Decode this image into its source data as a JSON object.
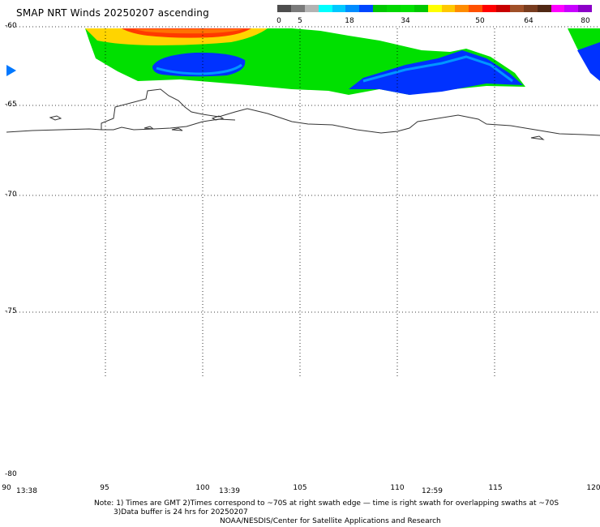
{
  "title": "SMAP NRT Winds 20250207 ascending",
  "colorbar": {
    "ticks": [
      "0",
      "5",
      "18",
      "34",
      "50",
      "64",
      "80"
    ],
    "colors": [
      "#4d4d4d",
      "#7a7a7a",
      "#b3b3b3",
      "#00ffff",
      "#00c8ff",
      "#008cff",
      "#0046ff",
      "#00c800",
      "#00d700",
      "#00e100",
      "#00c800",
      "#ffff00",
      "#ffc800",
      "#ff8c00",
      "#ff5000",
      "#ff0000",
      "#c80000",
      "#a05028",
      "#783c1e",
      "#502814",
      "#ff00ff",
      "#c800ff",
      "#8c00c8"
    ]
  },
  "map": {
    "lat_labels": [
      "-60",
      "-65",
      "-70",
      "-75",
      "-80"
    ],
    "lon_labels": [
      "90",
      "95",
      "100",
      "105",
      "110",
      "115",
      "120"
    ],
    "times": [
      "13:38",
      "13:39",
      "12:59"
    ],
    "wind_colors": {
      "low": "#0032ff",
      "mid": "#00e000",
      "high": "#ffd400",
      "veryhigh": "#ff3000"
    }
  },
  "footer": {
    "note_line1": "Note: 1) Times are GMT 2)Times correspond to ~70S at right swath edge — time is right swath for overlapping swaths at ~70S",
    "note_line2": "3)Data buffer is 24 hrs for 20250207",
    "credit": "NOAA/NESDIS/Center for Satellite Applications and Research"
  }
}
